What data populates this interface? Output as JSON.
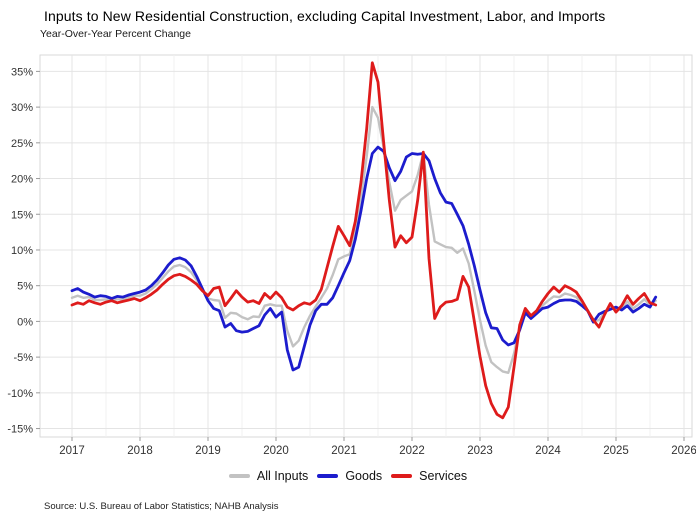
{
  "title": "Inputs to New Residential Construction, excluding Capital Investment, Labor, and Imports",
  "subtitle": "Year-Over-Year Percent Change",
  "source": "Source: U.S. Bureau of Labor Statistics; NAHB Analysis",
  "colors": {
    "all_inputs": "#c2c2c2",
    "goods": "#1c1ccd",
    "services": "#de1b1b",
    "grid_major": "#e4e4e4",
    "grid_minor": "#f1f1f1",
    "panel_border": "#d9d9d9",
    "tick": "#9a9a9a",
    "axis_text": "#333333"
  },
  "legend": {
    "items": [
      {
        "label": "All Inputs",
        "color_key": "all_inputs"
      },
      {
        "label": "Goods",
        "color_key": "goods"
      },
      {
        "label": "Services",
        "color_key": "services"
      }
    ]
  },
  "chart_data": {
    "type": "line",
    "title": "Inputs to New Residential Construction, excluding Capital Investment, Labor, and Imports",
    "subtitle": "Year-Over-Year Percent Change",
    "frequency": "monthly",
    "start_month": "2017-01",
    "end_month": "2025-08",
    "xlabel": "",
    "ylabel": "Year-Over-Year Percent Change",
    "grid": true,
    "legend_position": "bottom",
    "xlim": [
      2016.53,
      2026.12
    ],
    "ylim": [
      -16.2,
      37.2
    ],
    "x_ticks": [
      2017,
      2018,
      2019,
      2020,
      2021,
      2022,
      2023,
      2024,
      2025,
      2026
    ],
    "x_tick_labels": [
      "2017",
      "2018",
      "2019",
      "2020",
      "2021",
      "2022",
      "2023",
      "2024",
      "2025",
      "2026"
    ],
    "y_ticks": [
      -15,
      -10,
      -5,
      0,
      5,
      10,
      15,
      20,
      25,
      30,
      35
    ],
    "y_tick_labels": [
      "-15%",
      "-10%",
      "-5%",
      "0%",
      "5%",
      "10%",
      "15%",
      "20%",
      "25%",
      "30%",
      "35%"
    ],
    "series": [
      {
        "name": "All Inputs",
        "color_key": "all_inputs",
        "stroke_width": 2.4,
        "values": [
          3.3,
          3.6,
          3.3,
          3.4,
          3.0,
          3.0,
          3.1,
          3.0,
          3.1,
          3.1,
          3.4,
          3.6,
          3.6,
          3.9,
          4.5,
          5.2,
          6.1,
          7.0,
          7.7,
          7.9,
          7.6,
          6.9,
          5.8,
          4.5,
          3.2,
          3.0,
          2.9,
          0.5,
          1.2,
          1.1,
          0.6,
          0.3,
          0.7,
          0.6,
          2.2,
          2.4,
          2.2,
          2.2,
          -1.3,
          -3.5,
          -2.7,
          -0.8,
          0.8,
          2.1,
          3.3,
          4.6,
          6.5,
          8.7,
          9.1,
          9.4,
          12.6,
          17.3,
          23.1,
          30.0,
          28.5,
          24.3,
          19.5,
          15.5,
          17.0,
          17.6,
          18.2,
          20.5,
          23.6,
          16.3,
          11.2,
          10.8,
          10.4,
          10.3,
          9.6,
          10.2,
          8.1,
          4.3,
          0.2,
          -3.4,
          -5.7,
          -6.4,
          -7.0,
          -7.2,
          -4.5,
          -0.9,
          1.5,
          0.6,
          1.3,
          2.2,
          2.9,
          3.5,
          3.4,
          3.9,
          3.7,
          3.4,
          2.5,
          1.5,
          0.0,
          0.2,
          1.2,
          2.1,
          1.7,
          1.9,
          2.8,
          1.8,
          2.4,
          3.1,
          2.3,
          2.9
        ]
      },
      {
        "name": "Goods",
        "color_key": "goods",
        "stroke_width": 2.8,
        "values": [
          4.3,
          4.6,
          4.1,
          3.8,
          3.4,
          3.6,
          3.5,
          3.2,
          3.5,
          3.4,
          3.7,
          3.9,
          4.1,
          4.4,
          5.0,
          5.8,
          6.8,
          7.9,
          8.7,
          8.9,
          8.6,
          7.8,
          6.3,
          4.6,
          2.9,
          1.8,
          1.5,
          -0.8,
          -0.3,
          -1.3,
          -1.5,
          -1.4,
          -1.0,
          -0.6,
          0.9,
          1.8,
          0.6,
          1.3,
          -4.0,
          -6.8,
          -6.4,
          -3.5,
          -0.5,
          1.5,
          2.4,
          2.4,
          3.3,
          5.0,
          6.8,
          8.5,
          11.5,
          15.5,
          20.0,
          23.5,
          24.4,
          23.8,
          21.5,
          19.7,
          21.0,
          23.0,
          23.5,
          23.4,
          23.5,
          22.5,
          20.0,
          18.0,
          16.7,
          16.5,
          15.0,
          13.4,
          10.8,
          7.8,
          4.4,
          1.2,
          -0.9,
          -1.0,
          -2.6,
          -3.3,
          -3.0,
          -1.2,
          1.2,
          0.4,
          1.1,
          1.8,
          2.0,
          2.5,
          2.9,
          3.0,
          3.0,
          2.8,
          2.2,
          1.5,
          -0.1,
          1.0,
          1.4,
          1.7,
          2.0,
          1.6,
          2.2,
          1.3,
          1.8,
          2.4,
          2.0,
          3.4
        ]
      },
      {
        "name": "Services",
        "color_key": "services",
        "stroke_width": 2.8,
        "values": [
          2.3,
          2.6,
          2.4,
          2.9,
          2.6,
          2.4,
          2.7,
          2.9,
          2.6,
          2.8,
          3.0,
          3.2,
          2.9,
          3.3,
          3.8,
          4.4,
          5.2,
          5.9,
          6.4,
          6.6,
          6.3,
          5.8,
          5.2,
          4.3,
          3.6,
          4.6,
          4.8,
          2.2,
          3.2,
          4.3,
          3.4,
          2.7,
          2.9,
          2.5,
          3.9,
          3.2,
          4.1,
          3.3,
          2.0,
          1.6,
          2.2,
          2.6,
          2.4,
          3.0,
          4.5,
          7.5,
          10.5,
          13.3,
          12.0,
          10.6,
          14.0,
          19.5,
          27.0,
          36.2,
          33.5,
          25.0,
          17.0,
          10.4,
          12.0,
          11.0,
          11.8,
          17.0,
          23.7,
          8.8,
          0.4,
          2.0,
          2.7,
          2.8,
          3.1,
          6.3,
          4.8,
          0.0,
          -4.9,
          -9.0,
          -11.5,
          -13.0,
          -13.5,
          -12.0,
          -6.4,
          -0.5,
          1.8,
          0.8,
          1.5,
          2.8,
          3.9,
          4.8,
          4.1,
          5.0,
          4.6,
          4.1,
          2.9,
          1.5,
          0.2,
          -0.8,
          1.0,
          2.5,
          1.3,
          2.2,
          3.6,
          2.4,
          3.2,
          3.9,
          2.6,
          2.3
        ]
      }
    ]
  }
}
